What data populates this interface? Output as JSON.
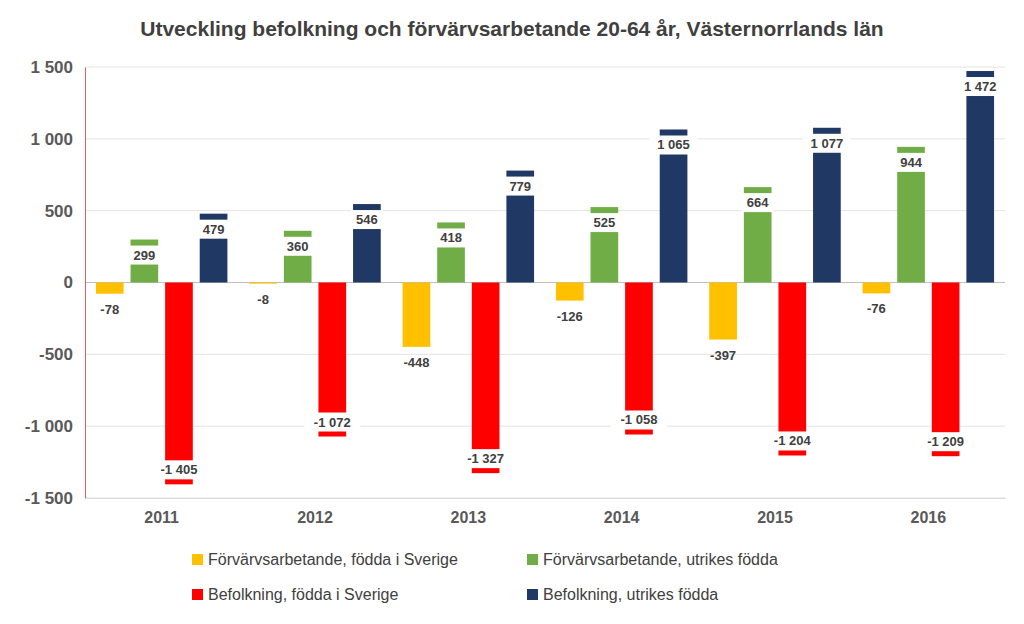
{
  "chart_data": {
    "type": "bar",
    "title": "Utveckling befolkning och förvärvsarbetande 20-64 år, Västernorrlands län",
    "categories": [
      "2011",
      "2012",
      "2013",
      "2014",
      "2015",
      "2016"
    ],
    "series": [
      {
        "name": "Förvärvsarbetande, födda i Sverige",
        "color": "#ffc000",
        "values": [
          -78,
          -8,
          -448,
          -126,
          -397,
          -76
        ]
      },
      {
        "name": "Förvärvsarbetande, utrikes födda",
        "color": "#70ad47",
        "values": [
          299,
          360,
          418,
          525,
          664,
          944
        ]
      },
      {
        "name": "Befolkning, födda i Sverige",
        "color": "#ff0000",
        "values": [
          -1405,
          -1072,
          -1327,
          -1058,
          -1204,
          -1209
        ],
        "value_labels": [
          "-1 405",
          "-1 072",
          "-1 327",
          "-1 058",
          "-1 204",
          "-1 209"
        ]
      },
      {
        "name": "Befolkning, utrikes födda",
        "color": "#1f3864",
        "values": [
          479,
          546,
          779,
          1065,
          1077,
          1472
        ],
        "value_labels": [
          "479",
          "546",
          "779",
          "1 065",
          "1 077",
          "1 472"
        ]
      }
    ],
    "ylim": [
      -1500,
      1500
    ],
    "yticks": [
      {
        "value": -1500,
        "label": "-1 500"
      },
      {
        "value": -1000,
        "label": "-1 000"
      },
      -500,
      0,
      500,
      {
        "value": 1000,
        "label": "1 000"
      },
      {
        "value": 1500,
        "label": "1 500"
      }
    ],
    "grid": true,
    "legend": "bottom",
    "data_labels": true
  }
}
